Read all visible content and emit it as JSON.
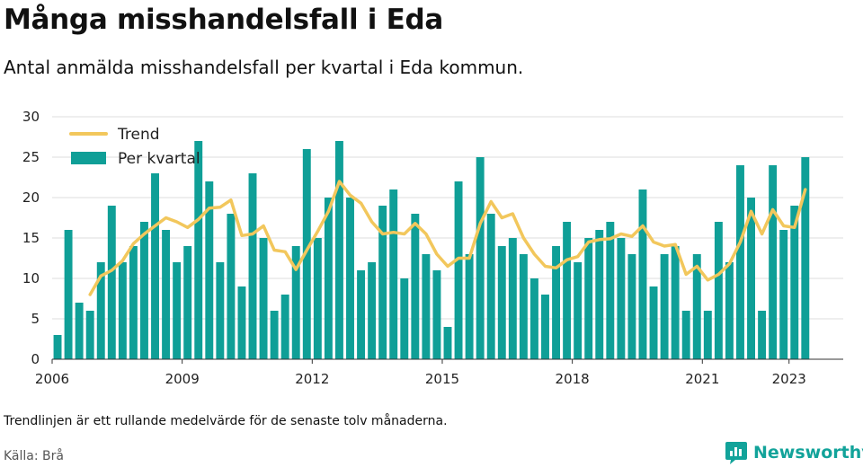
{
  "title": "Många misshandelsfall i Eda",
  "subtitle": "Antal anmälda misshandelsfall per kvartal i Eda kommun.",
  "note": "Trendlinjen är ett rullande medelvärde för de senaste tolv månaderna.",
  "source": "Källa: Brå",
  "brand": "Newsworthy",
  "colors": {
    "bars": "#0f9f97",
    "trend": "#f2c75c",
    "grid": "#dddddd",
    "brand": "#12a39a"
  },
  "chart_data": {
    "type": "bar",
    "ylim": [
      0,
      30
    ],
    "yticks": [
      0,
      5,
      10,
      15,
      20,
      25,
      30
    ],
    "xticks": [
      "2006",
      "2009",
      "2012",
      "2015",
      "2018",
      "2021",
      "2023"
    ],
    "grid": true,
    "legend_position": "top-left",
    "categories": [
      "2006-Q1",
      "2006-Q2",
      "2006-Q3",
      "2006-Q4",
      "2007-Q1",
      "2007-Q2",
      "2007-Q3",
      "2007-Q4",
      "2008-Q1",
      "2008-Q2",
      "2008-Q3",
      "2008-Q4",
      "2009-Q1",
      "2009-Q2",
      "2009-Q3",
      "2009-Q4",
      "2010-Q1",
      "2010-Q2",
      "2010-Q3",
      "2010-Q4",
      "2011-Q1",
      "2011-Q2",
      "2011-Q3",
      "2011-Q4",
      "2012-Q1",
      "2012-Q2",
      "2012-Q3",
      "2012-Q4",
      "2013-Q1",
      "2013-Q2",
      "2013-Q3",
      "2013-Q4",
      "2014-Q1",
      "2014-Q2",
      "2014-Q3",
      "2014-Q4",
      "2015-Q1",
      "2015-Q2",
      "2015-Q3",
      "2015-Q4",
      "2016-Q1",
      "2016-Q2",
      "2016-Q3",
      "2016-Q4",
      "2017-Q1",
      "2017-Q2",
      "2017-Q3",
      "2017-Q4",
      "2018-Q1",
      "2018-Q2",
      "2018-Q3",
      "2018-Q4",
      "2019-Q1",
      "2019-Q2",
      "2019-Q3",
      "2019-Q4",
      "2020-Q1",
      "2020-Q2",
      "2020-Q3",
      "2020-Q4",
      "2021-Q1",
      "2021-Q2",
      "2021-Q3",
      "2021-Q4",
      "2022-Q1",
      "2022-Q2",
      "2022-Q3",
      "2022-Q4",
      "2023-Q1",
      "2023-Q2"
    ],
    "series": [
      {
        "name": "Per kvartal",
        "type": "bar",
        "values": [
          3,
          16,
          7,
          6,
          12,
          19,
          12,
          14,
          17,
          23,
          16,
          12,
          14,
          27,
          22,
          12,
          18,
          9,
          23,
          15,
          6,
          8,
          14,
          26,
          15,
          20,
          27,
          20,
          11,
          12,
          19,
          21,
          10,
          18,
          13,
          11,
          4,
          22,
          13,
          25,
          18,
          14,
          15,
          13,
          10,
          8,
          14,
          17,
          12,
          15,
          16,
          17,
          15,
          13,
          21,
          9,
          13,
          14,
          6,
          13,
          6,
          17,
          12,
          24,
          20,
          6,
          24,
          16,
          19,
          25
        ]
      },
      {
        "name": "Trend",
        "type": "line",
        "values": [
          null,
          null,
          null,
          8,
          10.3,
          11,
          12.2,
          14.3,
          15.5,
          16.5,
          17.5,
          17,
          16.3,
          17.3,
          18.7,
          18.8,
          19.7,
          15.3,
          15.5,
          16.5,
          13.5,
          13.3,
          11.1,
          13.5,
          15.8,
          18.3,
          22,
          20.3,
          19.3,
          17,
          15.5,
          15.7,
          15.5,
          16.8,
          15.5,
          13,
          11.5,
          12.5,
          12.5,
          16.8,
          19.5,
          17.5,
          18,
          15,
          13,
          11.5,
          11.3,
          12.3,
          12.7,
          14.5,
          14.8,
          14.9,
          15.5,
          15.2,
          16.5,
          14.5,
          14,
          14.2,
          10.5,
          11.5,
          9.8,
          10.5,
          11.8,
          14.5,
          18.3,
          15.5,
          18.5,
          16.5,
          16.3,
          21
        ]
      }
    ]
  }
}
